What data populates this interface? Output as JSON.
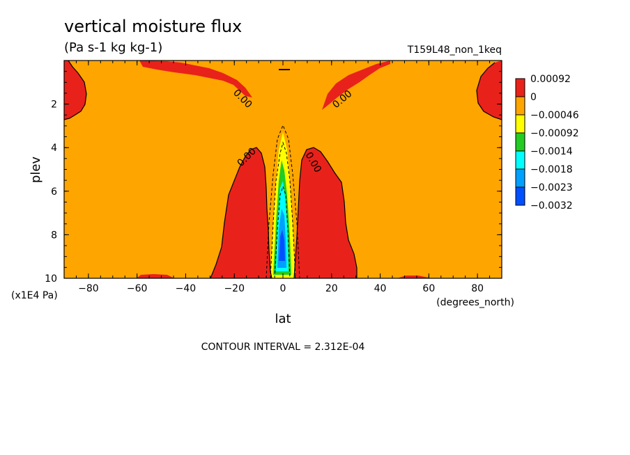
{
  "chart_data": {
    "type": "heatmap",
    "title": "vertical moisture flux",
    "units": "(Pa s-1 kg kg-1)",
    "run_label": "T159L48_non_1keq",
    "xlabel": "lat",
    "xunits": "(degrees_north)",
    "ylabel": "plev",
    "yunits": "(x1E4 Pa)",
    "xlim": [
      -90,
      90
    ],
    "ylim": [
      10,
      0
    ],
    "xticks": [
      -80,
      -60,
      -40,
      -20,
      0,
      20,
      40,
      60,
      80
    ],
    "xtick_labels": [
      "-80",
      "-60",
      "-40",
      "-20",
      "0",
      "20",
      "40",
      "60",
      "80"
    ],
    "yticks": [
      2,
      4,
      6,
      8,
      10
    ],
    "ytick_labels": [
      "2",
      "4",
      "6",
      "8",
      "10"
    ],
    "colorbar_labels": [
      "0.00092",
      "0",
      "-0.00046",
      "-0.00092",
      "-0.0014",
      "-0.0018",
      "-0.0023",
      "-0.0032"
    ],
    "colorbar_colors": [
      "#e8221a",
      "#ffa500",
      "#ffff00",
      "#22cc22",
      "#00ffff",
      "#00a0ff",
      "#0050ff"
    ],
    "background_color": "#ffa500",
    "contour_label": "0.00",
    "contour_interval": "CONTOUR INTERVAL = 2.312E-04",
    "regions": [
      {
        "name": "positive-north-of-equator-mid",
        "lat": [
          3,
          30
        ],
        "plev": [
          4.0,
          10
        ]
      },
      {
        "name": "positive-south-of-equator-mid",
        "lat": [
          -30,
          -3
        ],
        "plev": [
          4.0,
          10
        ]
      },
      {
        "name": "negative-equatorial-column",
        "lat": [
          -5,
          5
        ],
        "plev": [
          3.2,
          10
        ],
        "min": -0.0032
      }
    ]
  }
}
